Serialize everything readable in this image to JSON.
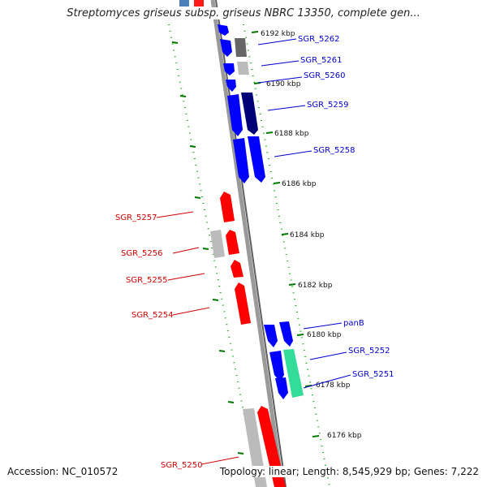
{
  "header": {
    "title": "Streptomyces griseus subsp. griseus NBRC 13350, complete gen..."
  },
  "footer": {
    "accession": "Accession: NC_010572",
    "summary": "Topology: linear; Length: 8,545,929 bp; Genes: 7,222"
  },
  "colors": {
    "forward_gene": "#0000ff",
    "reverse_gene": "#ff0000",
    "forward_label": "#0000cc",
    "reverse_label": "#cc0000",
    "scale_dash": "#007700",
    "backbone": "#888888"
  },
  "scale_ticks": [
    "6192 kbp",
    "6190 kbp",
    "6188 kbp",
    "6186 kbp",
    "6184 kbp",
    "6182 kbp",
    "6180 kbp",
    "6178 kbp",
    "6176 kbp"
  ],
  "genes_right": [
    "SGR_5262",
    "SGR_5261",
    "SGR_5260",
    "SGR_5259",
    "SGR_5258",
    "panB",
    "SGR_5252",
    "SGR_5251"
  ],
  "genes_left": [
    "SGR_5257",
    "SGR_5256",
    "SGR_5255",
    "SGR_5254",
    "SGR_5250"
  ]
}
